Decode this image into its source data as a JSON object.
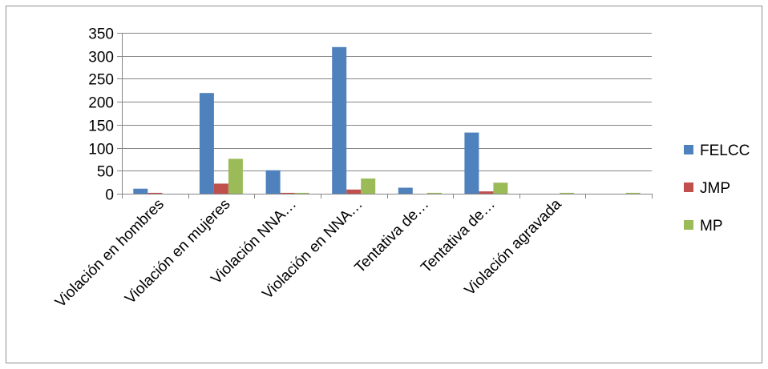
{
  "chart_data": {
    "type": "bar",
    "categories": [
      "Violación en hombres",
      "Violación en mujeres",
      "Violación NNA…",
      "Violación en NNA…",
      "Tentativa de…",
      "Tentativa de…",
      "Violación agravada",
      ""
    ],
    "series": [
      {
        "name": "FELCC",
        "color": "#4F81BD",
        "values": [
          11,
          219,
          51,
          319,
          13,
          133,
          0,
          0
        ]
      },
      {
        "name": "JMP",
        "color": "#C0504D",
        "values": [
          2,
          22,
          2,
          9,
          0,
          5,
          0,
          0
        ]
      },
      {
        "name": "MP",
        "color": "#9BBB59",
        "values": [
          0,
          76,
          2,
          33,
          2,
          24,
          2,
          2
        ]
      }
    ],
    "yticks": [
      0,
      50,
      100,
      150,
      200,
      250,
      300,
      350
    ],
    "ylim": [
      0,
      350
    ],
    "grid": true,
    "legend_position": "right",
    "title": "",
    "xlabel": "",
    "ylabel": ""
  }
}
